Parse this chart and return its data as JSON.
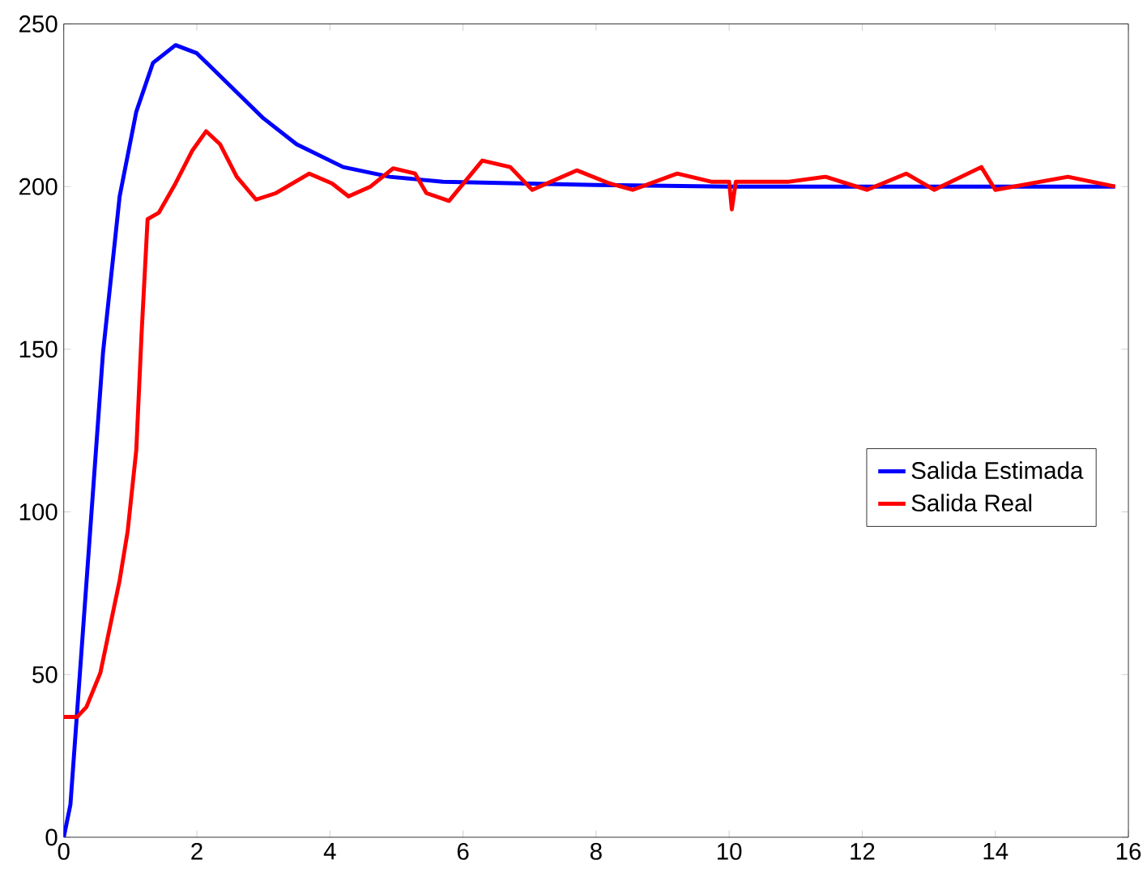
{
  "chart_data": {
    "type": "line",
    "xlim": [
      0,
      16
    ],
    "ylim": [
      0,
      250
    ],
    "xticks": [
      0,
      2,
      4,
      6,
      8,
      10,
      12,
      14,
      16
    ],
    "yticks": [
      0,
      50,
      100,
      150,
      200,
      250
    ],
    "grid": false,
    "legend": "right",
    "line_style": "solid",
    "marker": "none",
    "series": [
      {
        "name": "Salida Estimada",
        "color": "#0000ff",
        "x": [
          0,
          0.1,
          0.34,
          0.59,
          0.84,
          1.09,
          1.34,
          1.68,
          2.0,
          2.5,
          3.0,
          3.5,
          4.2,
          4.9,
          5.7,
          8,
          10,
          15.8
        ],
        "values": [
          0,
          10,
          78,
          149,
          197,
          223,
          238,
          243.5,
          241,
          231,
          221,
          213,
          206,
          203,
          201.5,
          200.5,
          200,
          200
        ]
      },
      {
        "name": "Salida Real",
        "color": "#ff0000",
        "x": [
          0,
          0.2,
          0.34,
          0.55,
          0.84,
          0.96,
          1.09,
          1.17,
          1.26,
          1.43,
          1.68,
          1.93,
          2.14,
          2.35,
          2.6,
          2.89,
          3.19,
          3.44,
          3.69,
          4.03,
          4.28,
          4.61,
          4.95,
          5.28,
          5.45,
          5.79,
          6.29,
          6.71,
          7.04,
          7.71,
          8.2,
          8.55,
          9.22,
          9.73,
          10.0,
          10.04,
          10.1,
          10.9,
          11.45,
          12.07,
          12.66,
          13.08,
          13.79,
          14.0,
          15.09,
          15.8
        ],
        "values": [
          37,
          37,
          40,
          50.5,
          79,
          94,
          119,
          155,
          190,
          192,
          201,
          211,
          217,
          213,
          203,
          196,
          198,
          201,
          204,
          201,
          197,
          200,
          205.6,
          204,
          198,
          195.6,
          208,
          206,
          199,
          205,
          201,
          199,
          204,
          201.5,
          201.5,
          193,
          201.5,
          201.5,
          203,
          199,
          204,
          199,
          206,
          199,
          203,
          200
        ]
      }
    ]
  }
}
